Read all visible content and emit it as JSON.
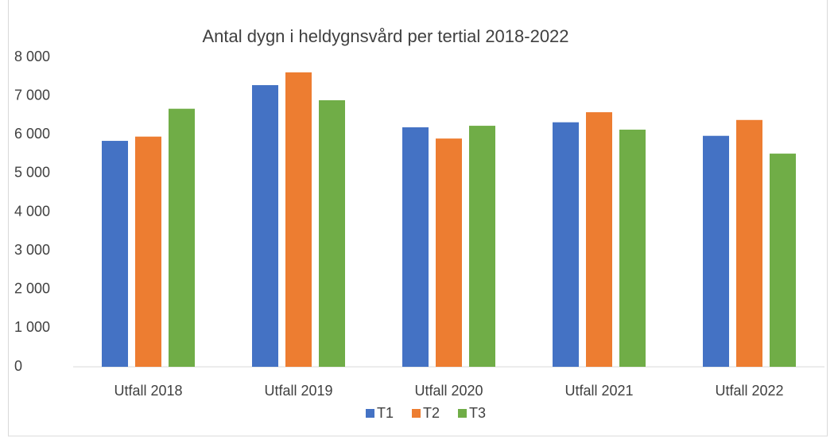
{
  "chart_data": {
    "type": "bar",
    "title": "Antal dygn i heldygnsvård per tertial 2018-2022",
    "categories": [
      "Utfall 2018",
      "Utfall 2019",
      "Utfall 2020",
      "Utfall 2021",
      "Utfall 2022"
    ],
    "series": [
      {
        "name": "T1",
        "color": "#4472c4",
        "values": [
          5840,
          7280,
          6190,
          6320,
          5970
        ]
      },
      {
        "name": "T2",
        "color": "#ed7d31",
        "values": [
          5950,
          7610,
          5900,
          6580,
          6380
        ]
      },
      {
        "name": "T3",
        "color": "#70ad47",
        "values": [
          6670,
          6890,
          6230,
          6130,
          5510
        ]
      }
    ],
    "ylim": [
      0,
      8000
    ],
    "yticks": [
      0,
      {
        "value": 1000,
        "label": "1 000"
      },
      {
        "value": 2000,
        "label": "2 000"
      },
      {
        "value": 3000,
        "label": "3 000"
      },
      {
        "value": 4000,
        "label": "4 000"
      },
      {
        "value": 5000,
        "label": "5 000"
      },
      {
        "value": 6000,
        "label": "6 000"
      },
      {
        "value": 7000,
        "label": "7 000"
      },
      {
        "value": 8000,
        "label": "8 000"
      }
    ],
    "grid": false,
    "legend": "bottom"
  }
}
